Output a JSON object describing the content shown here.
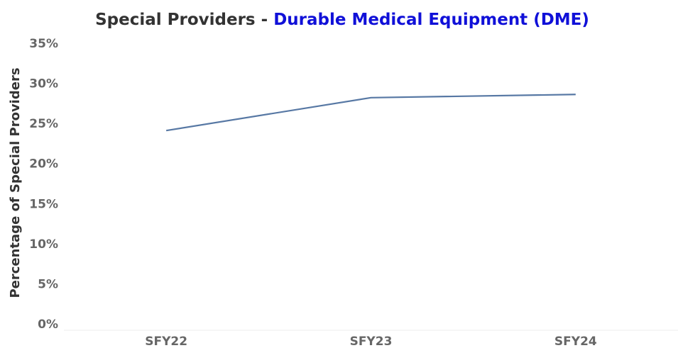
{
  "chart_data": {
    "type": "line",
    "title": "Special Providers -",
    "title_highlight": "Durable Medical Equipment (DME)",
    "y_label": "Percentage of Special Providers",
    "categories": [
      "SFY22",
      "SFY23",
      "SFY24"
    ],
    "series": [
      {
        "name": "Special Providers",
        "color": "#5778a4",
        "values": [
          24.2,
          28.3,
          28.7
        ]
      }
    ],
    "ylim": [
      0,
      35
    ],
    "yticks": [
      {
        "value": 0,
        "label": "0%"
      },
      {
        "value": 5,
        "label": "5%"
      },
      {
        "value": 10,
        "label": "10%"
      },
      {
        "value": 15,
        "label": "15%"
      },
      {
        "value": 20,
        "label": "20%"
      },
      {
        "value": 25,
        "label": "25%"
      },
      {
        "value": 30,
        "label": "30%"
      },
      {
        "value": 35,
        "label": "35%"
      }
    ],
    "grid": false
  }
}
